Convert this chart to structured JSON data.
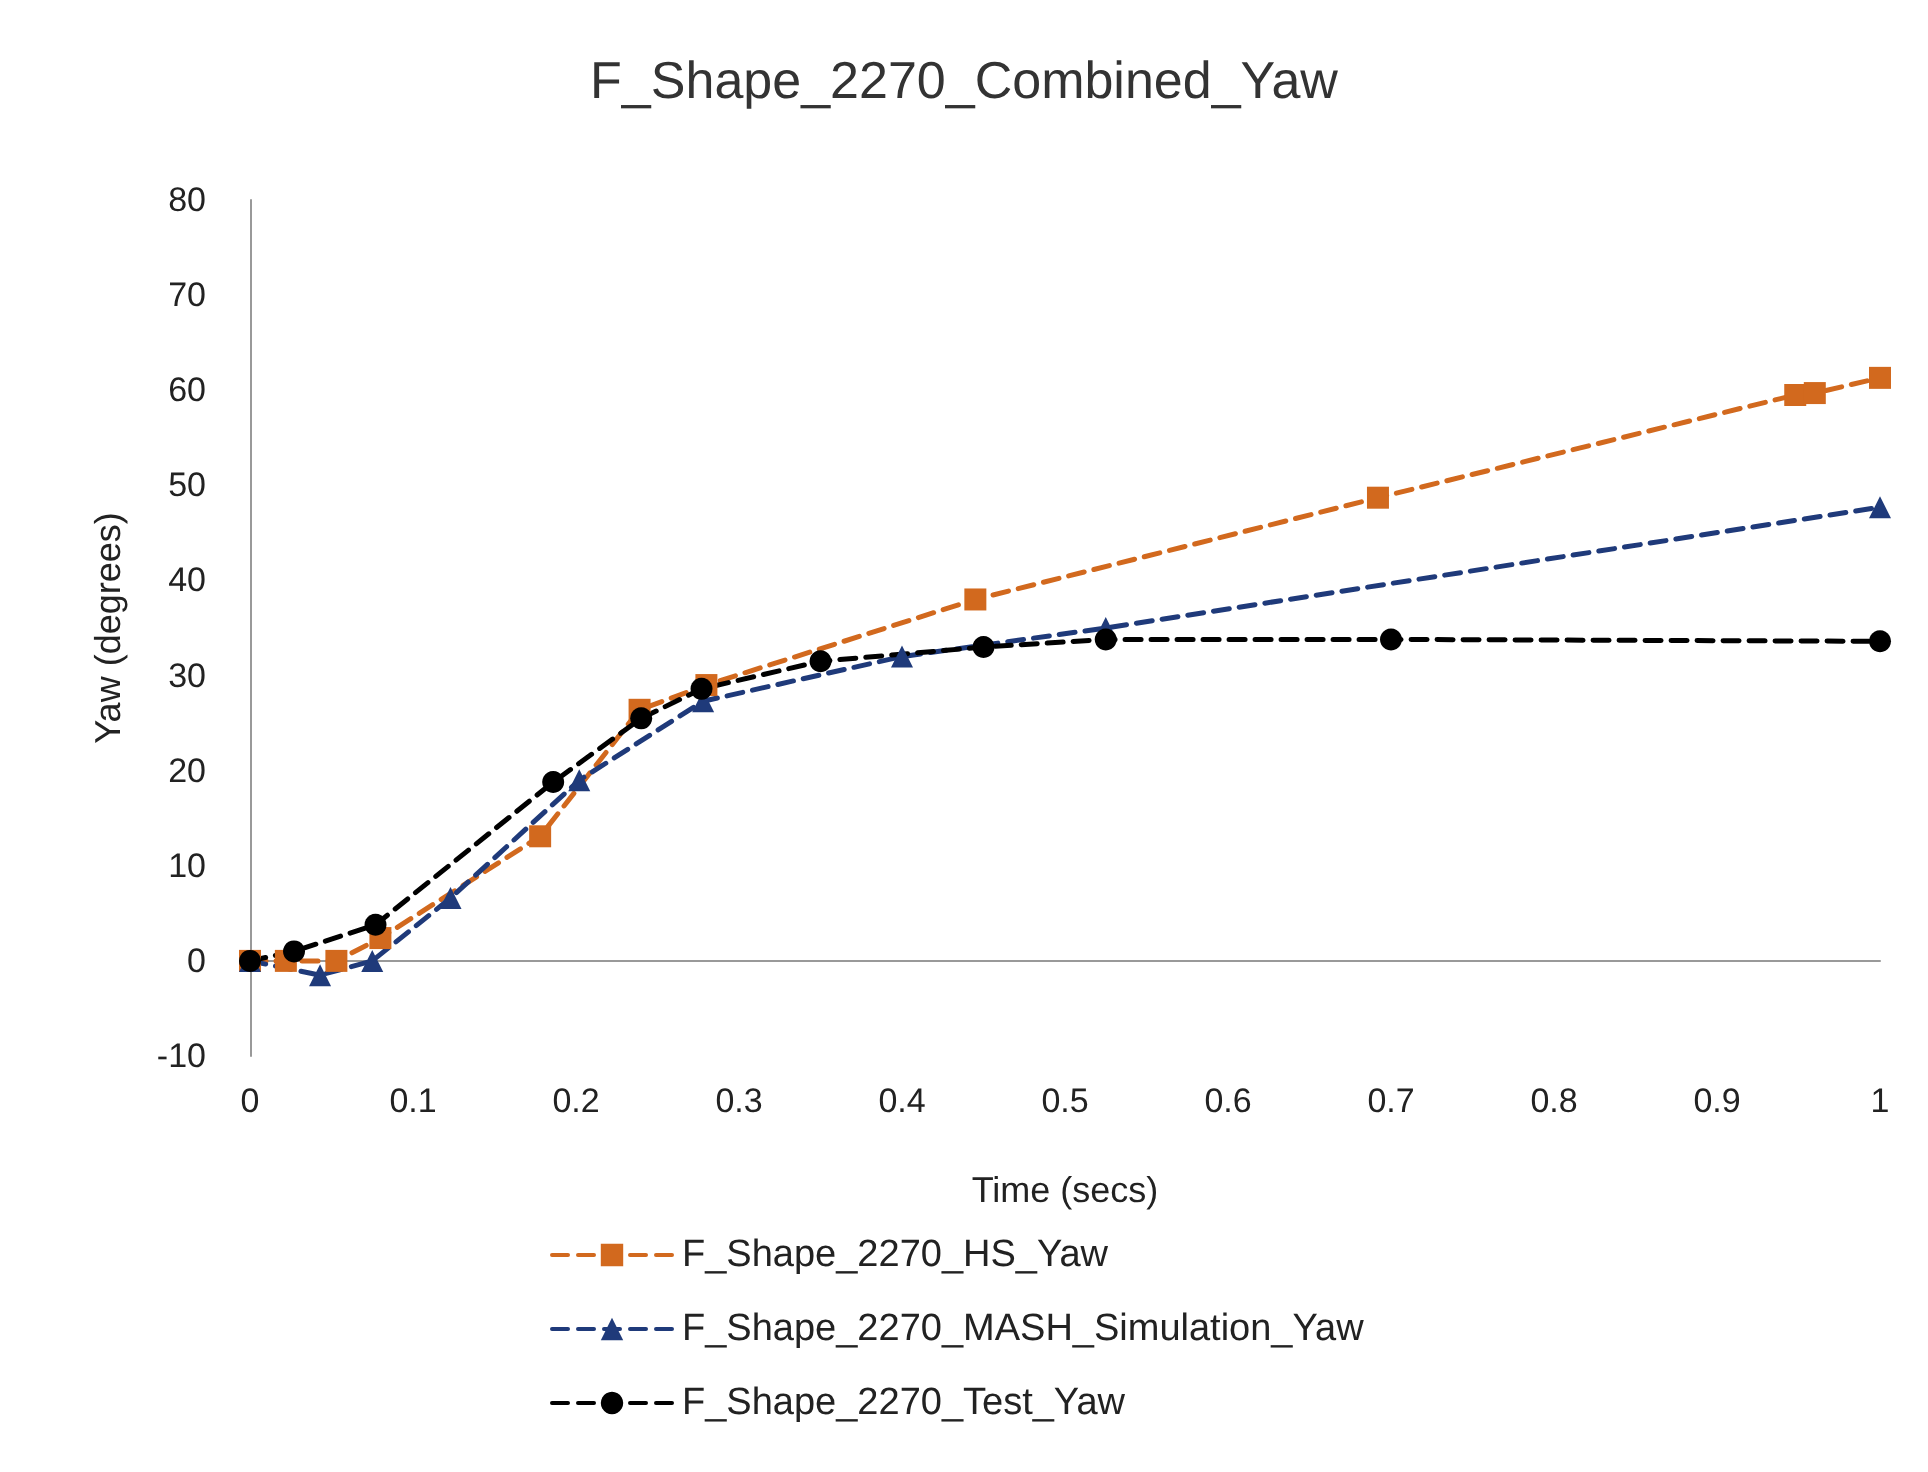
{
  "chart_data": {
    "type": "line",
    "title": "F_Shape_2270_Combined_Yaw",
    "xlabel": "Time (secs)",
    "ylabel": "Yaw (degrees)",
    "xlim": [
      0,
      1
    ],
    "xticks": [
      0,
      0.1,
      0.2,
      0.3,
      0.4,
      0.5,
      0.6,
      0.7,
      0.8,
      0.9,
      1
    ],
    "ylim": [
      -10,
      80
    ],
    "yticks": [
      -10,
      0,
      10,
      20,
      30,
      40,
      50,
      60,
      70,
      80
    ],
    "legend": "bottom",
    "series": [
      {
        "name": "F_Shape_2270_HS_Yaw",
        "color": "#d2691e",
        "marker": "square",
        "line_style": "dashed",
        "x": [
          0,
          0.022,
          0.053,
          0.08,
          0.178,
          0.239,
          0.28,
          0.445,
          0.692,
          0.948,
          0.96,
          1.0
        ],
        "values": [
          0,
          0,
          0,
          2.4,
          13.1,
          26.4,
          29,
          38,
          48.7,
          59.5,
          59.7,
          61.3
        ]
      },
      {
        "name": "F_Shape_2270_MASH_Simulation_Yaw",
        "color": "#1f3a7a",
        "marker": "triangle",
        "line_style": "dashed",
        "x": [
          0,
          0.043,
          0.075,
          0.123,
          0.202,
          0.278,
          0.4,
          0.525,
          1.0
        ],
        "values": [
          0,
          -1.5,
          0,
          6.6,
          19,
          27.3,
          32,
          35,
          47.7
        ]
      },
      {
        "name": "F_Shape_2270_Test_Yaw",
        "color": "#000000",
        "marker": "circle",
        "line_style": "dashed",
        "x": [
          0,
          0.027,
          0.077,
          0.186,
          0.24,
          0.277,
          0.35,
          0.45,
          0.525,
          0.7,
          1.0
        ],
        "values": [
          0,
          1,
          3.8,
          18.8,
          25.5,
          28.6,
          31.5,
          33,
          33.8,
          33.8,
          33.6
        ]
      }
    ]
  }
}
